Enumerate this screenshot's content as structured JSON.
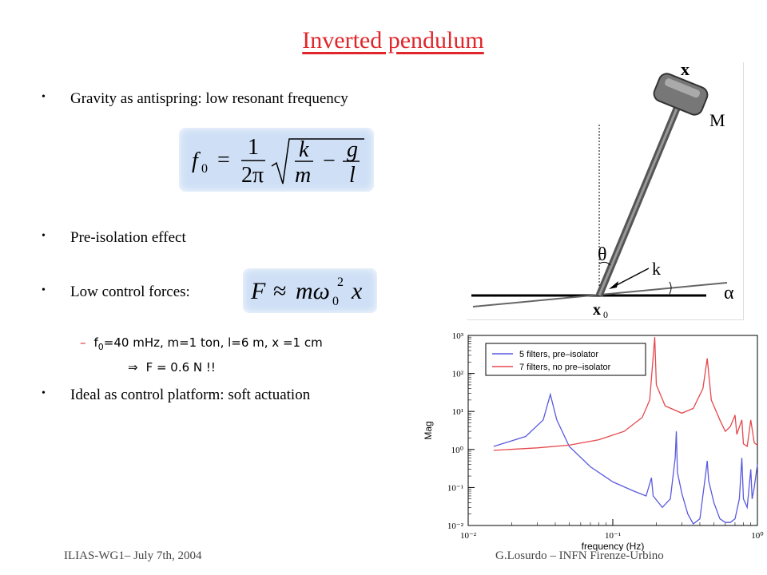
{
  "title": "Inverted pendulum",
  "bullets": [
    "Gravity as antispring: low resonant frequency",
    "Pre-isolation effect",
    "Low control forces:",
    "Ideal as control platform: soft actuation"
  ],
  "sub_item": {
    "dash": "–",
    "prefix": "f",
    "subscript": "0",
    "text": "=40 mHz, m=1 ton, l=6 m, x =1 cm",
    "arrow": "⇒",
    "result": "F = 0.6 N !!"
  },
  "footer": {
    "left": "ILIAS-WG1– July 7th, 2004",
    "right": "G.Losurdo – INFN Firenze-Urbino"
  },
  "pendulum_labels": {
    "x": "x",
    "mass": "M",
    "theta": "θ",
    "k": "k",
    "alpha": "α",
    "x0": "x",
    "x0_sub": "0"
  },
  "colors": {
    "title": "#e0262a",
    "formula_bg": "#cfe0f6",
    "series_blue": "#5a5adf",
    "series_red": "#e5484d"
  },
  "chart_data": {
    "type": "line",
    "xlabel": "frequency (Hz)",
    "ylabel": "Mag",
    "xscale": "log",
    "yscale": "log",
    "xlim": [
      0.01,
      1
    ],
    "ylim": [
      0.01,
      1000
    ],
    "x_ticks": [
      "10⁻²",
      "10⁻¹",
      "10⁰"
    ],
    "y_ticks": [
      "10⁻²",
      "10⁻¹",
      "10⁰",
      "10¹",
      "10²",
      "10³"
    ],
    "legend_position": "top-left",
    "series": [
      {
        "name": "5 filters, pre–isolator",
        "color": "#5a5adf",
        "points": [
          [
            0.015,
            1.2
          ],
          [
            0.025,
            2.2
          ],
          [
            0.033,
            6
          ],
          [
            0.037,
            28
          ],
          [
            0.041,
            6
          ],
          [
            0.05,
            1.2
          ],
          [
            0.07,
            0.35
          ],
          [
            0.1,
            0.14
          ],
          [
            0.14,
            0.08
          ],
          [
            0.17,
            0.06
          ],
          [
            0.185,
            0.18
          ],
          [
            0.19,
            0.06
          ],
          [
            0.22,
            0.03
          ],
          [
            0.25,
            0.05
          ],
          [
            0.27,
            0.6
          ],
          [
            0.275,
            3
          ],
          [
            0.28,
            0.25
          ],
          [
            0.3,
            0.07
          ],
          [
            0.33,
            0.02
          ],
          [
            0.36,
            0.011
          ],
          [
            0.4,
            0.015
          ],
          [
            0.44,
            0.25
          ],
          [
            0.45,
            0.5
          ],
          [
            0.46,
            0.15
          ],
          [
            0.5,
            0.04
          ],
          [
            0.55,
            0.015
          ],
          [
            0.6,
            0.012
          ],
          [
            0.65,
            0.012
          ],
          [
            0.7,
            0.015
          ],
          [
            0.75,
            0.05
          ],
          [
            0.78,
            0.6
          ],
          [
            0.8,
            0.05
          ],
          [
            0.85,
            0.03
          ],
          [
            0.9,
            0.3
          ],
          [
            0.92,
            0.05
          ],
          [
            0.95,
            0.1
          ],
          [
            1.0,
            0.4
          ]
        ]
      },
      {
        "name": "7 filters, no pre–isolator",
        "color": "#e5484d",
        "points": [
          [
            0.015,
            0.95
          ],
          [
            0.03,
            1.1
          ],
          [
            0.05,
            1.3
          ],
          [
            0.08,
            1.8
          ],
          [
            0.12,
            3
          ],
          [
            0.16,
            7
          ],
          [
            0.18,
            20
          ],
          [
            0.195,
            900
          ],
          [
            0.2,
            50
          ],
          [
            0.23,
            14
          ],
          [
            0.3,
            9
          ],
          [
            0.36,
            12
          ],
          [
            0.42,
            40
          ],
          [
            0.45,
            250
          ],
          [
            0.48,
            20
          ],
          [
            0.55,
            6
          ],
          [
            0.6,
            3
          ],
          [
            0.65,
            4
          ],
          [
            0.7,
            8
          ],
          [
            0.72,
            2.5
          ],
          [
            0.78,
            6
          ],
          [
            0.8,
            1.4
          ],
          [
            0.85,
            1.2
          ],
          [
            0.9,
            6
          ],
          [
            0.95,
            1.5
          ],
          [
            1.0,
            1.3
          ]
        ]
      }
    ]
  }
}
